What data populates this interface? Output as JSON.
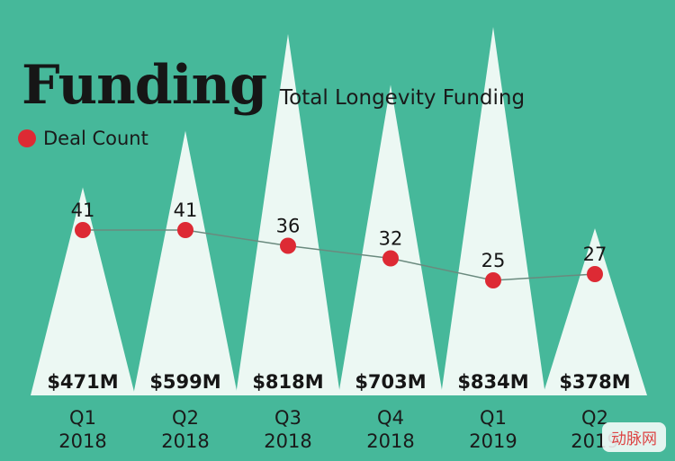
{
  "header": {
    "title": "Funding",
    "subtitle": "Total Longevity Funding"
  },
  "legend": {
    "label": "Deal Count",
    "color": "#dd2a34"
  },
  "colors": {
    "background": "#46b89a",
    "triangle": "#ecf8f3",
    "dot": "#dd2a34",
    "line": "#6a8a7e",
    "text": "#161616"
  },
  "watermark": {
    "text": "动脉网"
  },
  "chart_data": {
    "type": "bar",
    "title": "Funding",
    "subtitle": "Total Longevity Funding",
    "categories": [
      "Q1 2018",
      "Q2 2018",
      "Q3 2018",
      "Q4 2018",
      "Q1 2019",
      "Q2 2019"
    ],
    "category_lines": [
      [
        "Q1",
        "2018"
      ],
      [
        "Q2",
        "2018"
      ],
      [
        "Q3",
        "2018"
      ],
      [
        "Q4",
        "2018"
      ],
      [
        "Q1",
        "2019"
      ],
      [
        "Q2",
        "2019"
      ]
    ],
    "series": [
      {
        "name": "Total Longevity Funding",
        "values": [
          471,
          599,
          818,
          703,
          834,
          378
        ],
        "labels": [
          "$471M",
          "$599M",
          "$818M",
          "$703M",
          "$834M",
          "$378M"
        ],
        "unit": "$M"
      },
      {
        "name": "Deal Count",
        "values": [
          41,
          41,
          36,
          32,
          25,
          27
        ],
        "labels": [
          "41",
          "41",
          "36",
          "32",
          "25",
          "27"
        ]
      }
    ],
    "ylim": [
      0,
      834
    ],
    "grid": false,
    "legend_position": "top-left"
  }
}
